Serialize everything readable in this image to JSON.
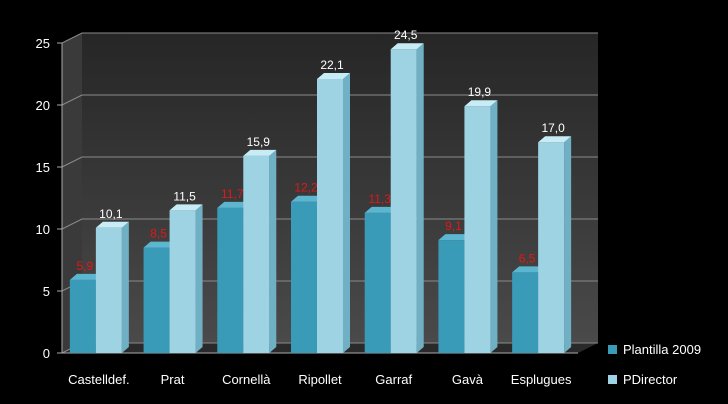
{
  "chart_data": {
    "type": "bar",
    "categories": [
      "Castelldef.",
      "Prat",
      "Cornellà",
      "Ripollet",
      "Garraf",
      "Gavà",
      "Esplugues"
    ],
    "series": [
      {
        "name": "Plantilla 2009",
        "values": [
          5.9,
          8.5,
          11.7,
          12.2,
          11.3,
          9.1,
          6.5
        ],
        "labels": [
          "5,9",
          "8,5",
          "11,7",
          "12,2",
          "11,3",
          "9,1",
          "6,5"
        ]
      },
      {
        "name": "PDirector",
        "values": [
          10.1,
          11.5,
          15.9,
          22.1,
          24.5,
          19.9,
          17.0
        ],
        "labels": [
          "10,1",
          "11,5",
          "15,9",
          "22,1",
          "24,5",
          "19,9",
          "17,0"
        ]
      }
    ],
    "yticks": [
      "0",
      "5",
      "10",
      "15",
      "20",
      "25"
    ],
    "ylim": [
      0,
      25
    ],
    "grid": true,
    "legend_position": "right",
    "colors": {
      "series1": "#3a9bb8",
      "series2": "#9ed3e4",
      "label1": "#e01818",
      "label2": "#ffffff",
      "background": "#000000",
      "wall": "#3c3c3c"
    }
  }
}
